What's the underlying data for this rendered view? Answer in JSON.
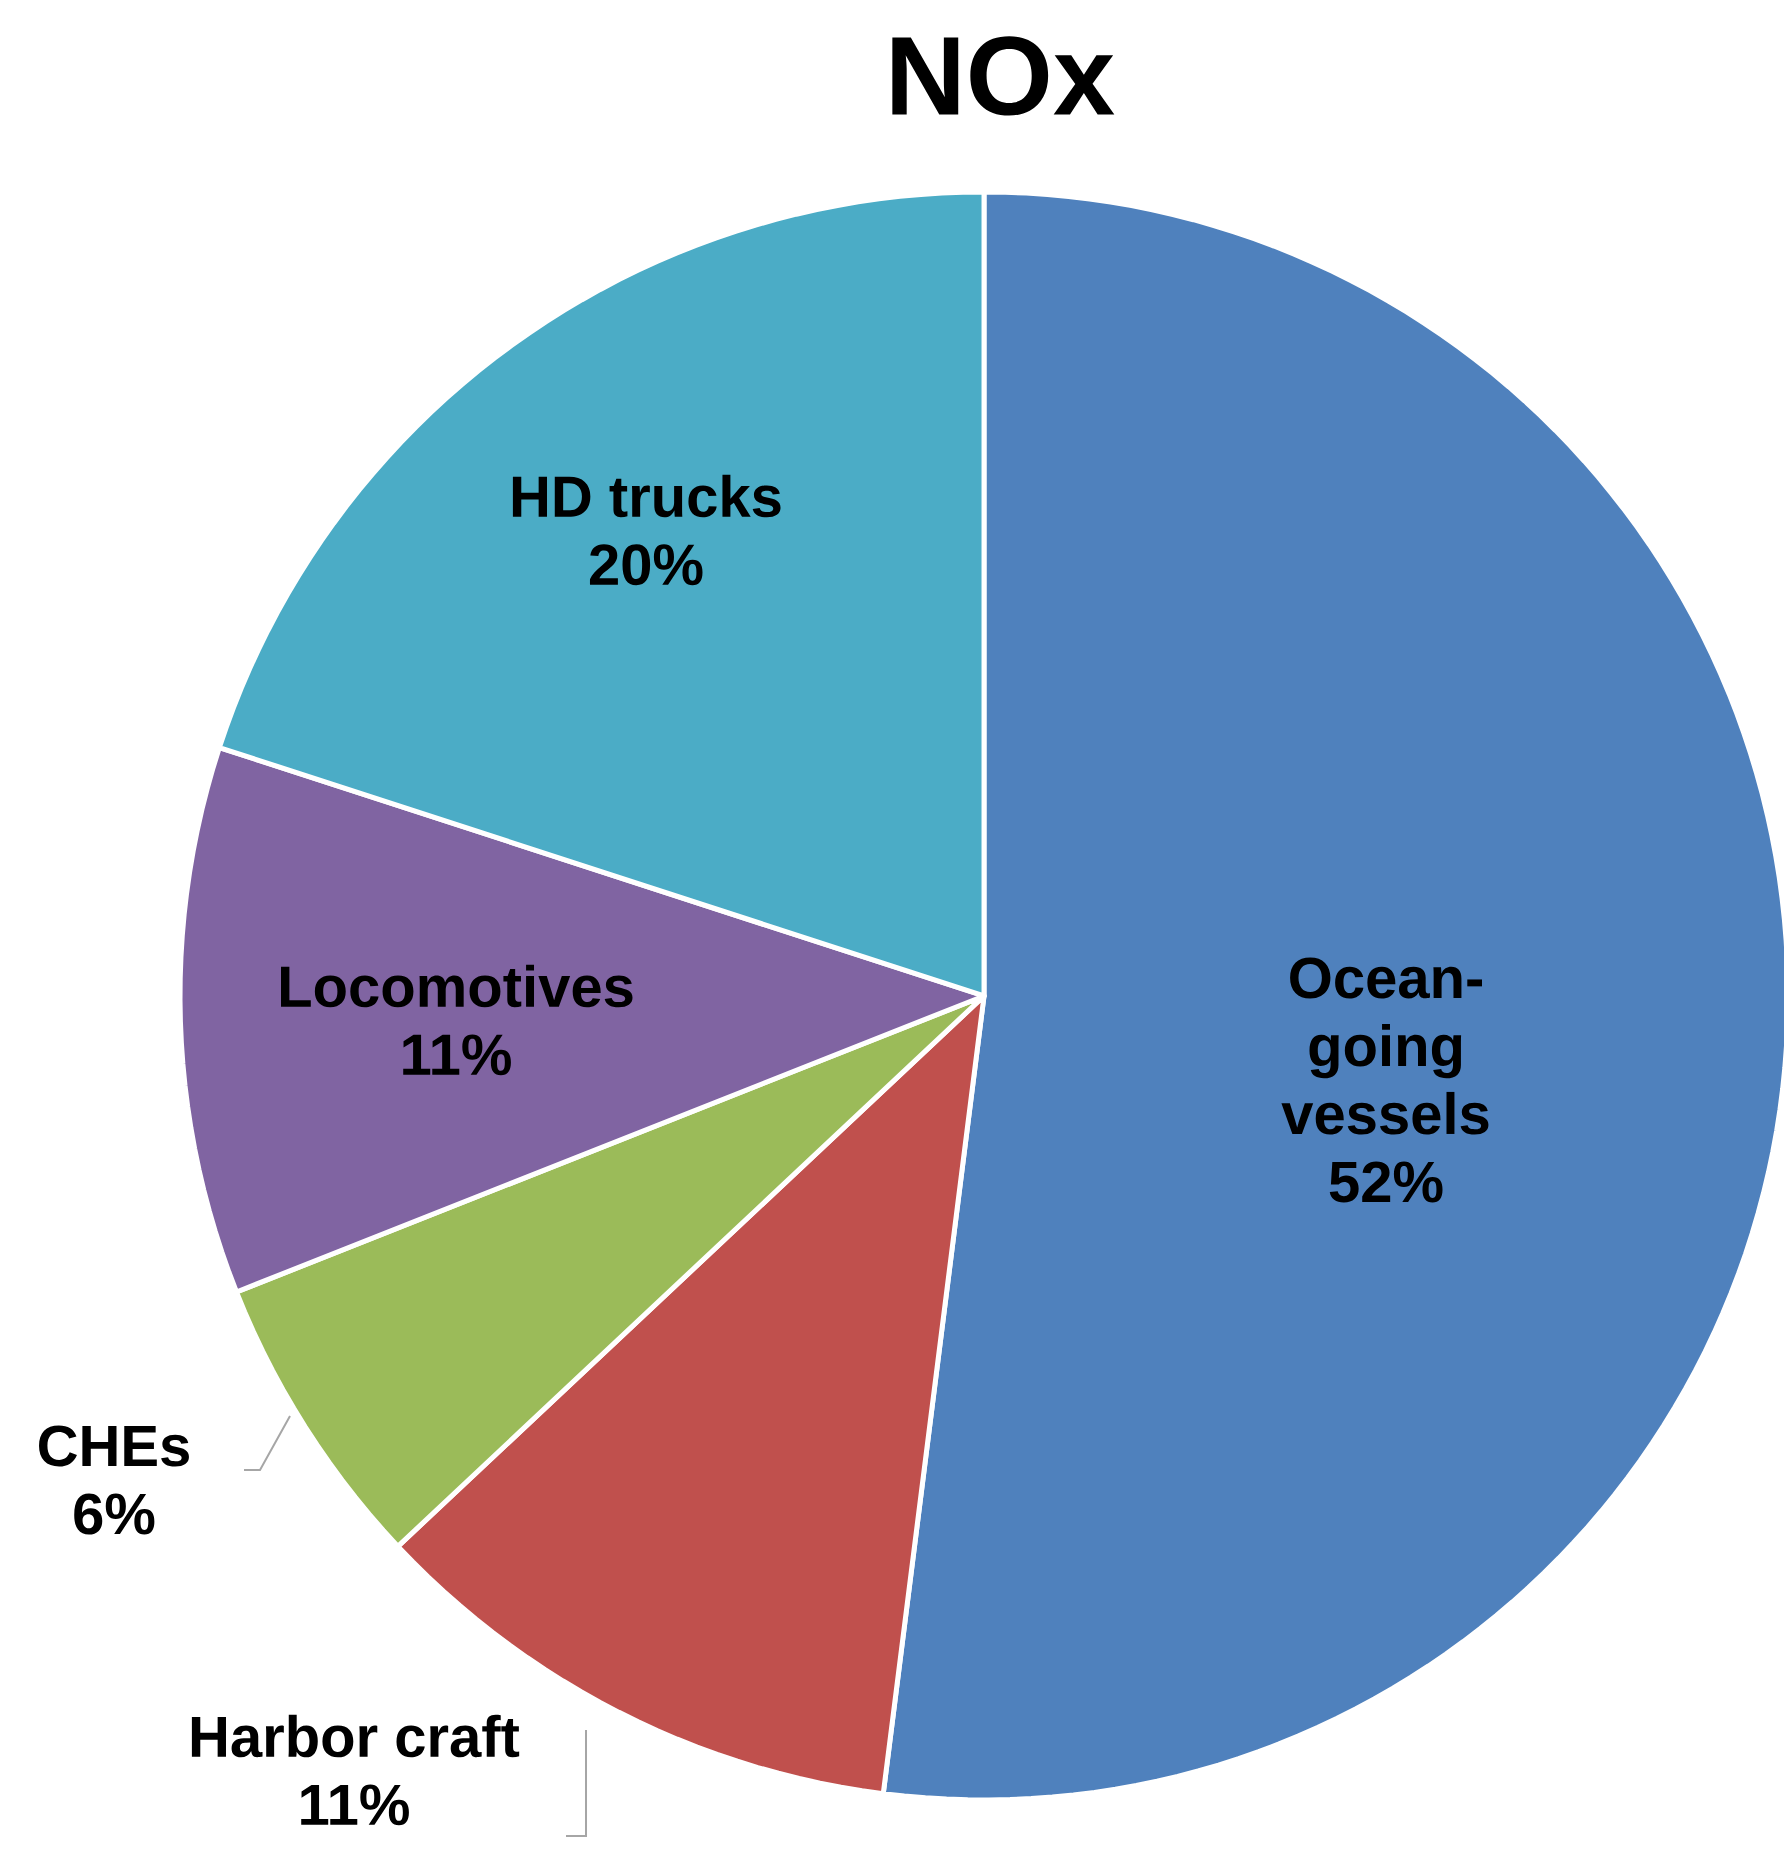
{
  "chart_data": {
    "type": "pie",
    "title": "NOx",
    "categories": [
      "Ocean-going vessels",
      "Harbor craft",
      "CHEs",
      "Locomotives",
      "HD trucks"
    ],
    "values": [
      52,
      11,
      6,
      11,
      20
    ],
    "value_labels": [
      "52%",
      "11%",
      "6%",
      "11%",
      "20%"
    ],
    "colors": [
      "#4f81bd",
      "#c0504d",
      "#9bbb59",
      "#8064a2",
      "#4bacc6"
    ]
  }
}
